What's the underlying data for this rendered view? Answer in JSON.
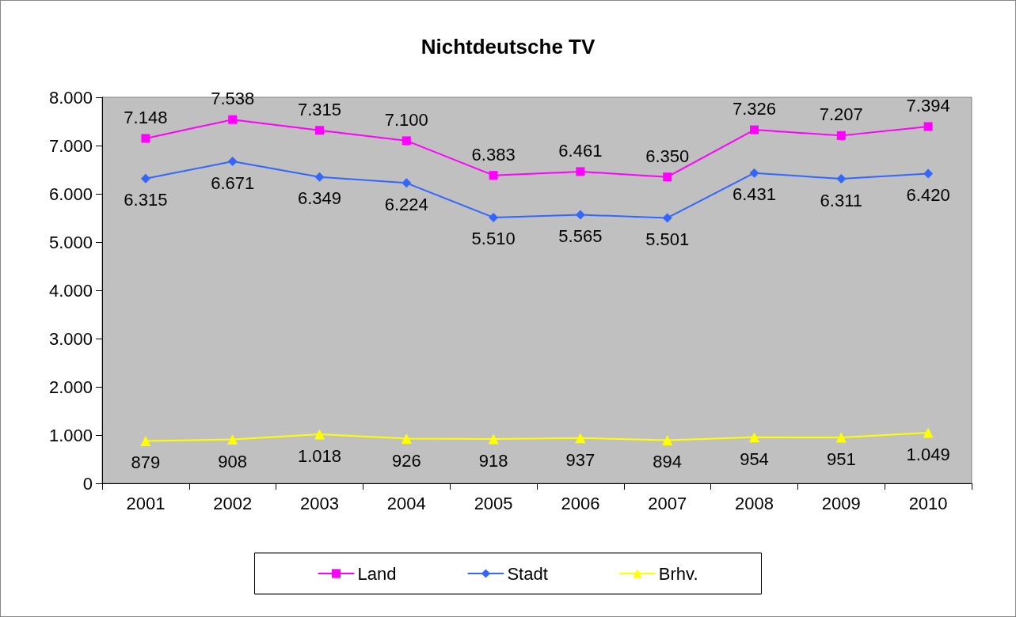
{
  "chart_data": {
    "type": "line",
    "title": "Nichtdeutsche TV",
    "categories": [
      "2001",
      "2002",
      "2003",
      "2004",
      "2005",
      "2006",
      "2007",
      "2008",
      "2009",
      "2010"
    ],
    "series": [
      {
        "name": "Land",
        "color": "#ff00ff",
        "marker": "square",
        "values": [
          7148,
          7538,
          7315,
          7100,
          6383,
          6461,
          6350,
          7326,
          7207,
          7394
        ],
        "value_labels": [
          "7.148",
          "7.538",
          "7.315",
          "7.100",
          "6.383",
          "6.461",
          "6.350",
          "7.326",
          "7.207",
          "7.394"
        ]
      },
      {
        "name": "Stadt",
        "color": "#3366ff",
        "marker": "diamond",
        "values": [
          6315,
          6671,
          6349,
          6224,
          5510,
          5565,
          5501,
          6431,
          6311,
          6420
        ],
        "value_labels": [
          "6.315",
          "6.671",
          "6.349",
          "6.224",
          "5.510",
          "5.565",
          "5.501",
          "6.431",
          "6.311",
          "6.420"
        ]
      },
      {
        "name": "Brhv.",
        "color": "#ffff00",
        "marker": "triangle",
        "values": [
          879,
          908,
          1018,
          926,
          918,
          937,
          894,
          954,
          951,
          1049
        ],
        "value_labels": [
          "879",
          "908",
          "1.018",
          "926",
          "918",
          "937",
          "894",
          "954",
          "951",
          "1.049"
        ]
      }
    ],
    "ylim": [
      0,
      8000
    ],
    "yticks": [
      0,
      {
        "value": 1000,
        "label": "1.000"
      },
      {
        "value": 2000,
        "label": "2.000"
      },
      {
        "value": 3000,
        "label": "3.000"
      },
      {
        "value": 4000,
        "label": "4.000"
      },
      {
        "value": 5000,
        "label": "5.000"
      },
      {
        "value": 6000,
        "label": "6.000"
      },
      {
        "value": 7000,
        "label": "7.000"
      },
      {
        "value": 8000,
        "label": "8.000"
      }
    ],
    "grid": false,
    "legend": "bottom",
    "line_style": "solid"
  }
}
